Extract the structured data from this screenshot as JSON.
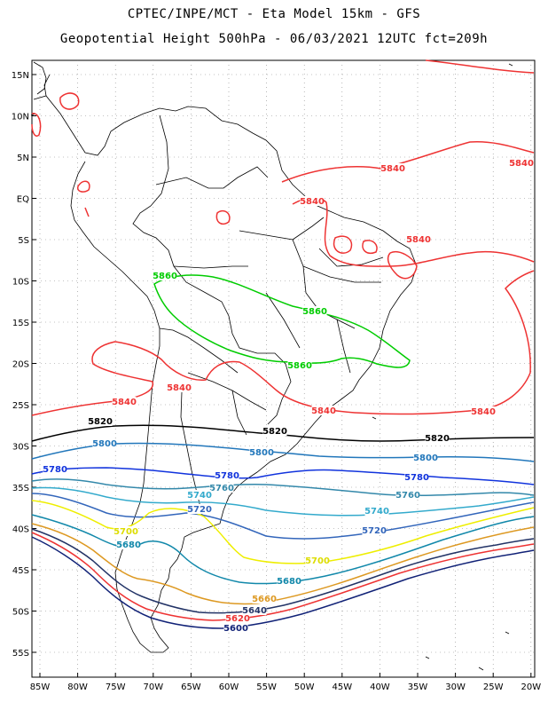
{
  "title_line1": "CPTEC/INPE/MCT -  Eta Model 15km - GFS",
  "title_line2": "Geopotential Height 500hPa - 06/03/2021 12UTC fct=209h",
  "lat_ticks": [
    "15N",
    "10N",
    "5N",
    "EQ",
    "5S",
    "10S",
    "15S",
    "20S",
    "25S",
    "30S",
    "35S",
    "40S",
    "45S",
    "50S",
    "55S"
  ],
  "lon_ticks": [
    "85W",
    "80W",
    "75W",
    "70W",
    "65W",
    "60W",
    "55W",
    "50W",
    "45W",
    "40W",
    "35W",
    "30W",
    "25W",
    "20W"
  ],
  "contour_colors": {
    "5860": "#00cc00",
    "5840": "#ee3333",
    "5820": "#000000",
    "5800": "#2277bb",
    "5780": "#1133dd",
    "5760": "#3388aa",
    "5740": "#33aacc",
    "5720": "#3366bb",
    "5700": "#eeee00",
    "5680": "#1188aa",
    "5660": "#dd9922",
    "5640": "#223366",
    "5620": "#ee3333",
    "5600": "#112277"
  },
  "contour_labels": [
    {
      "id": "5840-ne-a",
      "text": "5840",
      "color": "#ee3333"
    },
    {
      "id": "5840-ne-b",
      "text": "5840",
      "color": "#ee3333"
    },
    {
      "id": "5840-ne-c",
      "text": "5840",
      "color": "#ee3333"
    },
    {
      "id": "5840-ne-d",
      "text": "5840",
      "color": "#ee3333"
    },
    {
      "id": "5860-a",
      "text": "5860",
      "color": "#00cc00"
    },
    {
      "id": "5860-b",
      "text": "5860",
      "color": "#00cc00"
    },
    {
      "id": "5860-c",
      "text": "5860",
      "color": "#00cc00"
    },
    {
      "id": "5840-s-a",
      "text": "5840",
      "color": "#ee3333"
    },
    {
      "id": "5840-s-b",
      "text": "5840",
      "color": "#ee3333"
    },
    {
      "id": "5840-s-c",
      "text": "5840",
      "color": "#ee3333"
    },
    {
      "id": "5840-s-d",
      "text": "5840",
      "color": "#ee3333"
    },
    {
      "id": "5820-a",
      "text": "5820",
      "color": "#000000"
    },
    {
      "id": "5820-b",
      "text": "5820",
      "color": "#000000"
    },
    {
      "id": "5820-c",
      "text": "5820",
      "color": "#000000"
    },
    {
      "id": "5800-a",
      "text": "5800",
      "color": "#2277bb"
    },
    {
      "id": "5800-b",
      "text": "5800",
      "color": "#2277bb"
    },
    {
      "id": "5800-c",
      "text": "5800",
      "color": "#2277bb"
    },
    {
      "id": "5780-a",
      "text": "5780",
      "color": "#1133dd"
    },
    {
      "id": "5780-b",
      "text": "5780",
      "color": "#1133dd"
    },
    {
      "id": "5780-c",
      "text": "5780",
      "color": "#1133dd"
    },
    {
      "id": "5760-a",
      "text": "5760",
      "color": "#3388aa"
    },
    {
      "id": "5760-b",
      "text": "5760",
      "color": "#3388aa"
    },
    {
      "id": "5740-a",
      "text": "5740",
      "color": "#33aacc"
    },
    {
      "id": "5740-b",
      "text": "5740",
      "color": "#33aacc"
    },
    {
      "id": "5720-a",
      "text": "5720",
      "color": "#3366bb"
    },
    {
      "id": "5720-b",
      "text": "5720",
      "color": "#3366bb"
    },
    {
      "id": "5700-a",
      "text": "5700",
      "color": "#dddd00"
    },
    {
      "id": "5700-b",
      "text": "5700",
      "color": "#dddd00"
    },
    {
      "id": "5680-a",
      "text": "5680",
      "color": "#1188aa"
    },
    {
      "id": "5680-b",
      "text": "5680",
      "color": "#1188aa"
    },
    {
      "id": "5660",
      "text": "5660",
      "color": "#dd9922"
    },
    {
      "id": "5640",
      "text": "5640",
      "color": "#223366"
    },
    {
      "id": "5620",
      "text": "5620",
      "color": "#ee3333"
    },
    {
      "id": "5600",
      "text": "5600",
      "color": "#112277"
    }
  ]
}
